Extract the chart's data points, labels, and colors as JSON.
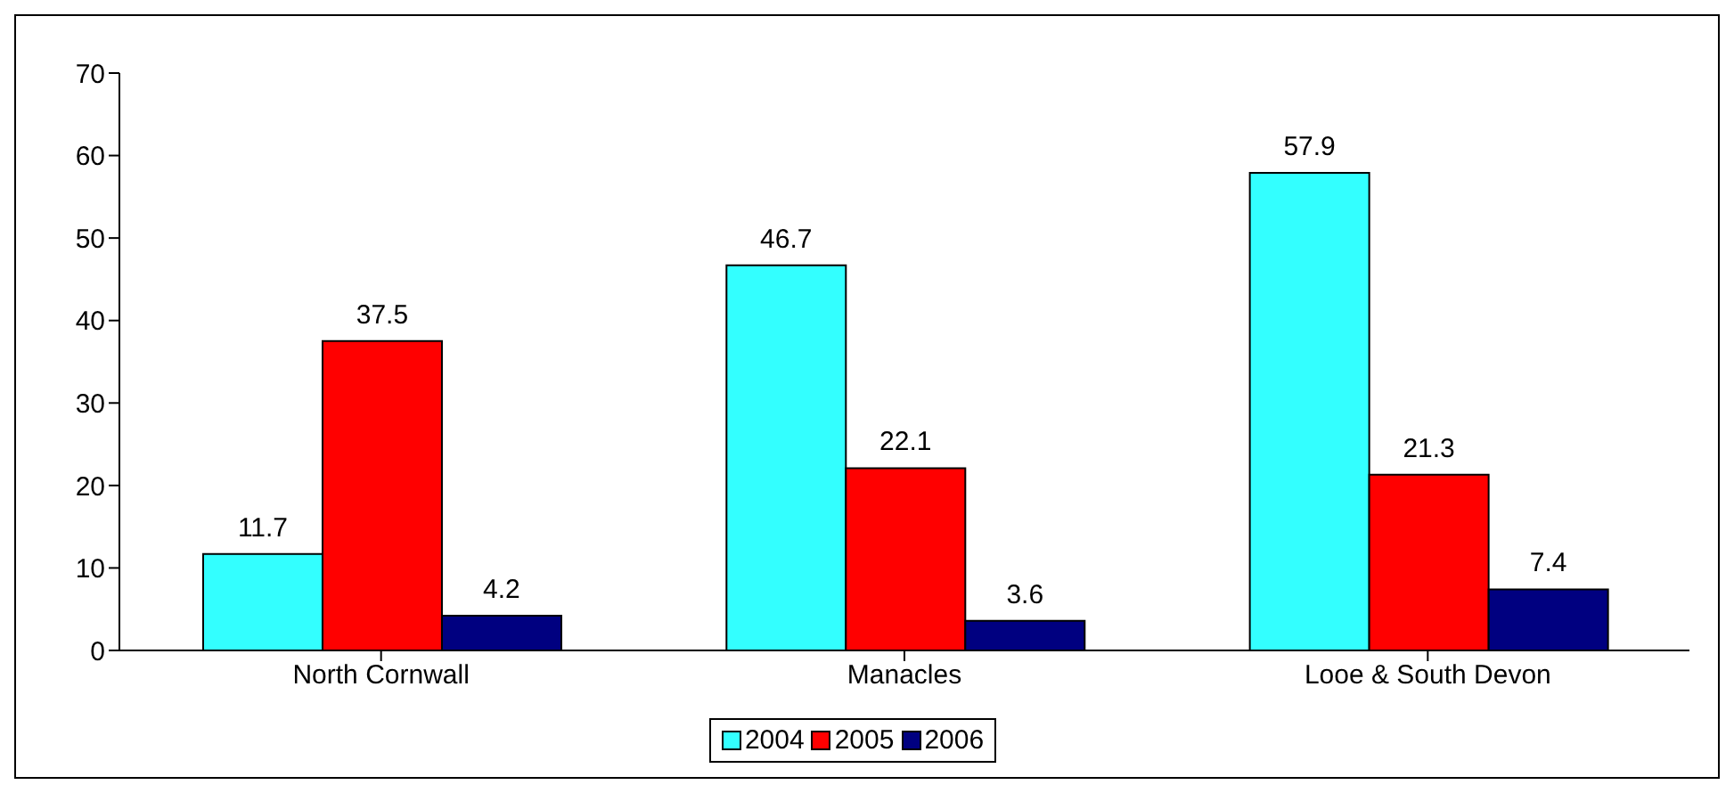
{
  "chart_data": {
    "type": "bar",
    "categories": [
      "North Cornwall",
      "Manacles",
      "Looe & South Devon"
    ],
    "series": [
      {
        "name": "2004",
        "color": "#33ffff",
        "values": [
          11.7,
          46.7,
          57.9
        ]
      },
      {
        "name": "2005",
        "color": "#ff0000",
        "values": [
          37.5,
          22.1,
          21.3
        ]
      },
      {
        "name": "2006",
        "color": "#000080",
        "values": [
          4.2,
          3.6,
          7.4
        ]
      }
    ],
    "ylim": [
      0,
      70
    ],
    "yticks": [
      0,
      10,
      20,
      30,
      40,
      50,
      60,
      70
    ],
    "grid": false,
    "legend": "bottom",
    "data_labels": true
  }
}
